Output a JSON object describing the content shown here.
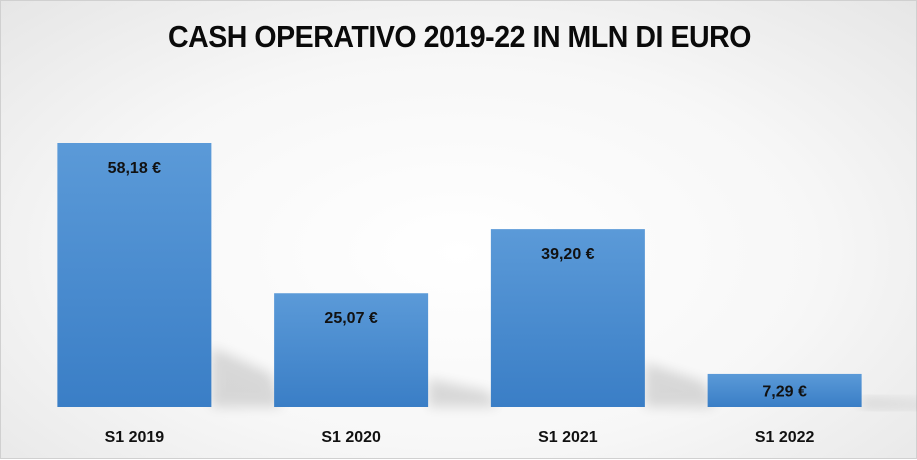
{
  "chart_data": {
    "type": "bar",
    "title": "CASH OPERATIVO 2019-22 IN MLN DI EURO",
    "xlabel": "",
    "ylabel": "",
    "categories": [
      "S1 2019",
      "S1 2020",
      "S1 2021",
      "S1 2022"
    ],
    "values": [
      58.18,
      25.07,
      39.2,
      7.29
    ],
    "value_labels": [
      "58,18 €",
      "25,07 €",
      "39,20 €",
      "7,29 €"
    ],
    "ylim": [
      0,
      58.18
    ],
    "grid": false,
    "legend": "none",
    "colors": {
      "bar_top": "#5b9ad8",
      "bar_bottom": "#3a7ec6",
      "text": "#111111"
    }
  }
}
